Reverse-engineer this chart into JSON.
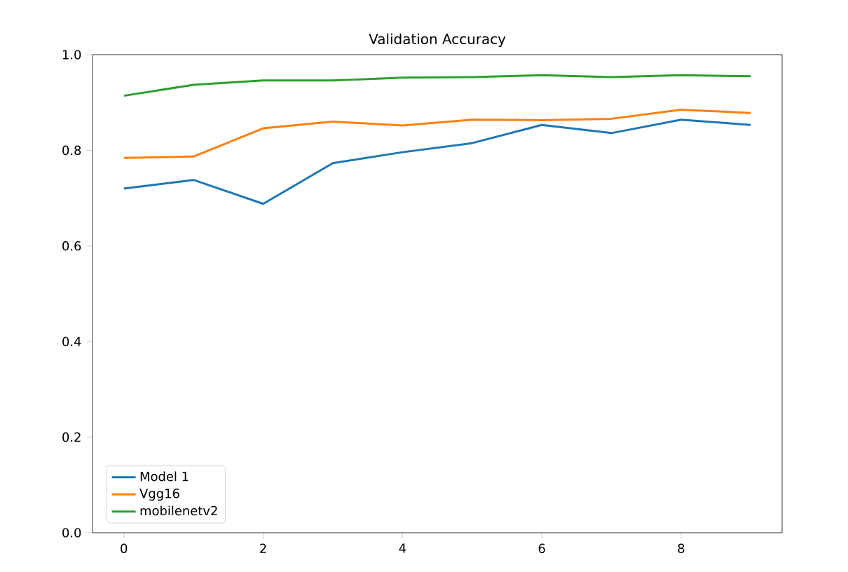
{
  "chart_data": {
    "type": "line",
    "title": "Validation Accuracy",
    "x": [
      0,
      1,
      2,
      3,
      4,
      5,
      6,
      7,
      8,
      9
    ],
    "series": [
      {
        "name": "Model 1",
        "color": "#1f77b4",
        "values": [
          0.72,
          0.738,
          0.688,
          0.773,
          0.796,
          0.815,
          0.853,
          0.836,
          0.864,
          0.853
        ]
      },
      {
        "name": "Vgg16",
        "color": "#ff7f0e",
        "values": [
          0.784,
          0.787,
          0.846,
          0.86,
          0.852,
          0.864,
          0.863,
          0.866,
          0.885,
          0.878
        ]
      },
      {
        "name": "mobilenetv2",
        "color": "#2ca02c",
        "values": [
          0.914,
          0.937,
          0.946,
          0.946,
          0.952,
          0.953,
          0.957,
          0.953,
          0.957,
          0.955
        ]
      }
    ],
    "xlim": [
      -0.45,
      9.45
    ],
    "ylim": [
      0.0,
      1.0
    ],
    "xticks": [
      0,
      2,
      4,
      6,
      8
    ],
    "yticks": [
      {
        "value": 0.0,
        "label": "0.0"
      },
      {
        "value": 0.2,
        "label": "0.2"
      },
      {
        "value": 0.4,
        "label": "0.4"
      },
      {
        "value": 0.6,
        "label": "0.6"
      },
      {
        "value": 0.8,
        "label": "0.8"
      },
      {
        "value": 1.0,
        "label": "1.0"
      }
    ],
    "legend": "bottom left",
    "grid": false
  }
}
